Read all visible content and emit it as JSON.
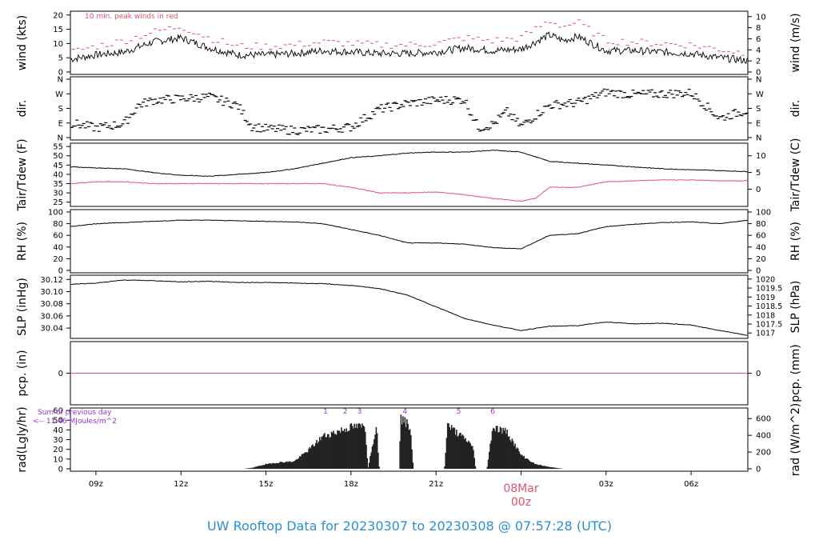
{
  "title": "UW Rooftop Data for 20230307  to  20230308 @ 07:57:28  (UTC)",
  "colors": {
    "title": "#2b8fd6",
    "peak": "#df536b",
    "dew": "#df536b",
    "pcp": "#df536b",
    "annotation": "#9b30d9",
    "date": "#df536b",
    "line": "#000000"
  },
  "x_axis": {
    "ticks": [
      {
        "hour": 9,
        "label": "09z"
      },
      {
        "hour": 12,
        "label": "12z"
      },
      {
        "hour": 15,
        "label": "15z"
      },
      {
        "hour": 18,
        "label": "18z"
      },
      {
        "hour": 21,
        "label": "21z"
      },
      {
        "hour": 27,
        "label": "03z"
      },
      {
        "hour": 30,
        "label": "06z"
      }
    ],
    "date_marker": {
      "hour": 24,
      "date": "08Mar",
      "time": "00z"
    },
    "range_hours": [
      8.1,
      32
    ]
  },
  "panels": {
    "wind": {
      "ylabel_left": "wind (kts)",
      "ylabel_right": "wind (m/s)",
      "left_ticks": [
        "0",
        "5",
        "10",
        "15",
        "20"
      ],
      "right_ticks": [
        "0",
        "2",
        "4",
        "6",
        "8",
        "10"
      ],
      "ylim": [
        0,
        20.5
      ],
      "annotation": "10 min. peak winds in red"
    },
    "dir": {
      "ylabel_left": "dir.",
      "ylabel_right": "dir.",
      "left_ticks": [
        "N",
        "E",
        "S",
        "W",
        "N"
      ],
      "right_ticks": [
        "N",
        "E",
        "S",
        "W",
        "N"
      ],
      "ylim": [
        0,
        360
      ]
    },
    "temp": {
      "ylabel_left": "Tair/Tdew (F)",
      "ylabel_right": "Tair/Tdew (C)",
      "left_ticks": [
        "25",
        "30",
        "35",
        "40",
        "45",
        "50",
        "55"
      ],
      "right_ticks": [
        "0",
        "5",
        "10"
      ],
      "ylim": [
        24,
        55.5
      ]
    },
    "rh": {
      "ylabel_left": "RH (%)",
      "ylabel_right": "RH (%)",
      "left_ticks": [
        "0",
        "20",
        "40",
        "60",
        "80",
        "100"
      ],
      "right_ticks": [
        "0",
        "20",
        "40",
        "60",
        "80",
        "100"
      ],
      "ylim": [
        0,
        100
      ]
    },
    "slp": {
      "ylabel_left": "SLP (inHg)",
      "ylabel_right": "SLP (hPa)",
      "left_ticks": [
        "30.04",
        "30.06",
        "30.08",
        "30.10",
        "30.12"
      ],
      "right_ticks": [
        "1017",
        "1017.5",
        "1018",
        "1018.5",
        "1019",
        "1019.5",
        "1020"
      ],
      "ylim": [
        30.027,
        30.123
      ]
    },
    "pcp": {
      "ylabel_left": "pcp. (in)",
      "ylabel_right": "pcp. (mm)",
      "left_ticks": [
        "0"
      ],
      "right_ticks": [
        "0"
      ]
    },
    "rad": {
      "ylabel_left": "rad(Lgly/hr)",
      "ylabel_right": "rad (W/m^2)",
      "left_ticks": [
        "0",
        "10",
        "20",
        "30",
        "40",
        "50",
        "60"
      ],
      "right_ticks": [
        "0",
        "200",
        "400",
        "600"
      ],
      "ylim": [
        0,
        60
      ],
      "note_line1": "Sum of previous day",
      "note_line2": "<-- 11.46 MJoules/m^2",
      "markers": [
        "1",
        "2",
        "3",
        "4",
        "5",
        "6"
      ]
    }
  },
  "chart_data": {
    "type": "line",
    "x_unit": "hours UTC since 2023-03-07 00z",
    "series": [
      {
        "panel": "wind",
        "color": "#000000",
        "x": [
          8.1,
          9,
          10,
          11,
          12,
          13,
          14,
          15,
          16,
          17,
          18,
          19,
          20,
          21,
          22,
          23,
          24,
          25,
          25.5,
          26,
          27,
          28,
          29,
          30,
          31,
          32
        ],
        "values": [
          4.5,
          6,
          7,
          10.5,
          12,
          8.5,
          6,
          6,
          6.5,
          7.5,
          7,
          6.5,
          6.5,
          7,
          8.5,
          7.5,
          8,
          13,
          11,
          12.5,
          7.5,
          7.5,
          7,
          6.5,
          5,
          4
        ]
      },
      {
        "panel": "wind",
        "color": "#df536b",
        "style": "peak",
        "x": [
          8.1,
          9,
          10,
          11,
          12,
          13,
          14,
          15,
          16,
          17,
          18,
          19,
          20,
          21,
          22,
          23,
          24,
          25,
          25.5,
          26,
          27,
          28,
          29,
          30,
          31,
          32
        ],
        "values": [
          7,
          9,
          11,
          14,
          16,
          12,
          9,
          9,
          9.5,
          10.5,
          10,
          9.5,
          9.5,
          10,
          12,
          11,
          12,
          18,
          16,
          17.5,
          11,
          10.5,
          10,
          9.5,
          8,
          6.5
        ]
      },
      {
        "panel": "dir",
        "color": "#000000",
        "style": "dashes",
        "x": [
          8.1,
          9,
          10,
          10.5,
          11,
          12,
          13,
          14,
          14.5,
          15,
          16,
          17,
          18,
          19,
          20,
          21,
          22,
          22.5,
          23,
          23.5,
          24,
          25,
          26,
          27,
          28,
          29,
          30,
          30.5,
          31,
          32
        ],
        "values": [
          90,
          60,
          85,
          200,
          230,
          240,
          250,
          200,
          70,
          55,
          45,
          50,
          65,
          175,
          210,
          230,
          235,
          60,
          80,
          160,
          70,
          200,
          215,
          280,
          265,
          270,
          275,
          200,
          120,
          170
        ]
      },
      {
        "panel": "temp",
        "color": "#000000",
        "x": [
          8.1,
          9,
          10,
          11,
          12,
          13,
          14,
          15,
          16,
          17,
          18,
          19,
          20,
          21,
          22,
          23,
          24,
          25,
          26,
          27,
          28,
          29,
          30,
          31,
          32
        ],
        "values": [
          44,
          43.5,
          43,
          41,
          39.5,
          39,
          40,
          41,
          43,
          46,
          49,
          50,
          51.5,
          52,
          52,
          53,
          52,
          47,
          46,
          45,
          44,
          43,
          42.5,
          42,
          41.5
        ]
      },
      {
        "panel": "temp",
        "color": "#df536b",
        "x": [
          8.1,
          9,
          10,
          11,
          12,
          13,
          14,
          15,
          16,
          17,
          18,
          19,
          20,
          21,
          22,
          23,
          24,
          24.5,
          25,
          26,
          27,
          28,
          29,
          30,
          31,
          32
        ],
        "values": [
          35,
          36,
          36,
          35,
          35,
          35,
          35,
          35,
          35,
          35,
          33,
          30,
          30,
          30.5,
          29,
          27,
          25.5,
          27,
          33,
          33,
          36,
          36.5,
          37,
          37,
          36.5,
          36.5
        ]
      },
      {
        "panel": "rh",
        "color": "#000000",
        "x": [
          8.1,
          9,
          10,
          11,
          12,
          13,
          14,
          15,
          16,
          17,
          18,
          19,
          20,
          21,
          22,
          23,
          24,
          25,
          26,
          27,
          28,
          29,
          30,
          31,
          32
        ],
        "values": [
          75,
          80,
          82,
          84,
          86,
          86,
          85,
          84,
          83,
          80,
          70,
          60,
          47,
          47,
          45,
          39,
          37,
          60,
          63,
          75,
          79,
          82,
          83,
          80,
          86
        ]
      },
      {
        "panel": "slp",
        "color": "#000000",
        "x": [
          8.1,
          9,
          10,
          11,
          12,
          13,
          14,
          15,
          16,
          17,
          18,
          19,
          20,
          21,
          22,
          23,
          24,
          25,
          26,
          27,
          28,
          29,
          30,
          31,
          32
        ],
        "values": [
          30.112,
          30.114,
          30.119,
          30.118,
          30.116,
          30.117,
          30.115,
          30.115,
          30.114,
          30.113,
          30.11,
          30.105,
          30.094,
          30.075,
          30.056,
          30.045,
          30.036,
          30.043,
          30.044,
          30.05,
          30.047,
          30.048,
          30.045,
          30.036,
          30.028
        ]
      },
      {
        "panel": "pcp",
        "color": "#df536b",
        "x": [
          8.1,
          32
        ],
        "values": [
          0,
          0
        ]
      },
      {
        "panel": "rad",
        "color": "#222222",
        "style": "bars",
        "x": [
          14.2,
          14.5,
          15,
          15.5,
          16,
          16.5,
          17,
          17.5,
          18,
          18.5,
          18.6,
          18.9,
          19,
          19.7,
          19.75,
          20.1,
          20.2,
          21.3,
          21.4,
          21.5,
          21.7,
          22.3,
          22.4,
          22.8,
          23,
          23.5,
          24,
          24.5,
          25,
          25.5
        ],
        "values": [
          0,
          1,
          5,
          7,
          8,
          20,
          35,
          40,
          45,
          46,
          0,
          48,
          0,
          0,
          55,
          45,
          0,
          0,
          48,
          45,
          40,
          25,
          0,
          0,
          45,
          40,
          15,
          5,
          2,
          0
        ]
      }
    ]
  }
}
